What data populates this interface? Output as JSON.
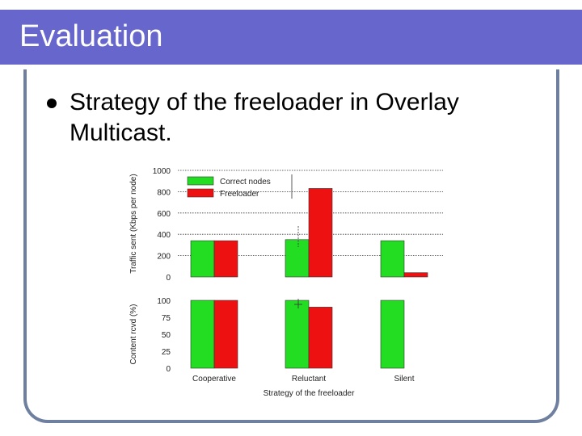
{
  "slide": {
    "title": "Evaluation",
    "bullet_line1": "Strategy of the freeloader in Overlay",
    "bullet_line2": "Multicast."
  },
  "colors": {
    "title_bar": "#6666cc",
    "correct": "#22dd22",
    "freeloader": "#ee1111"
  },
  "chart_data": [
    {
      "type": "bar",
      "categories": [
        "Cooperative",
        "Reluctant",
        "Silent"
      ],
      "series": [
        {
          "name": "Correct nodes",
          "values": [
            340,
            350,
            340
          ]
        },
        {
          "name": "Freeloader",
          "values": [
            340,
            830,
            40
          ]
        }
      ],
      "ylabel": "Traffic sent (Kbps per node)",
      "ylim": [
        0,
        1000
      ],
      "yticks": [
        0,
        200,
        400,
        600,
        800,
        1000
      ],
      "legend": "top-left",
      "grid": "dotted"
    },
    {
      "type": "bar",
      "categories": [
        "Cooperative",
        "Reluctant",
        "Silent"
      ],
      "series": [
        {
          "name": "Correct nodes",
          "values": [
            100,
            100,
            100
          ]
        },
        {
          "name": "Freeloader",
          "values": [
            100,
            90,
            0
          ]
        }
      ],
      "ylabel": "Content rcvd (%)",
      "xlabel": "Strategy of the freeloader",
      "ylim": [
        0,
        100
      ],
      "yticks": [
        0,
        25,
        50,
        75,
        100
      ]
    }
  ]
}
